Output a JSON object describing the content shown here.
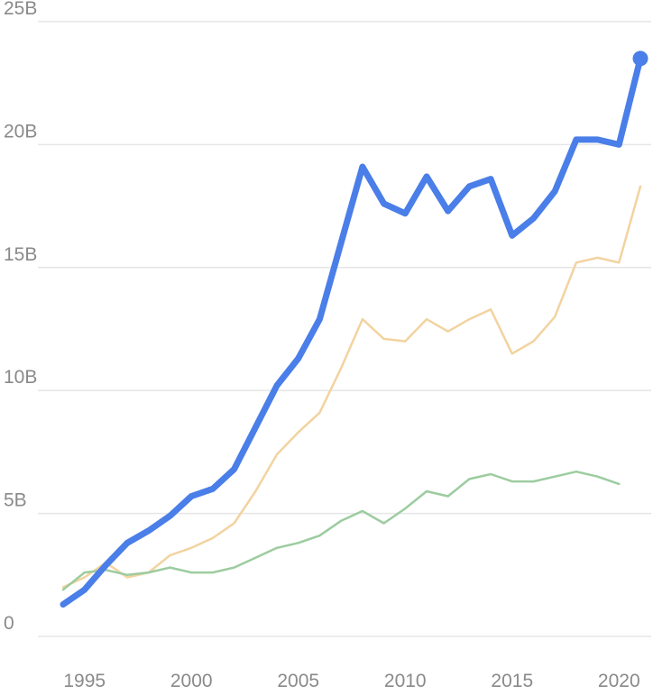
{
  "chart_data": {
    "type": "line",
    "title": "",
    "xlabel": "",
    "ylabel": "",
    "xlim": [
      1994,
      2021
    ],
    "ylim": [
      0,
      25
    ],
    "grid": true,
    "legend": "none",
    "x_ticks": [
      1995,
      2000,
      2005,
      2010,
      2015,
      2020
    ],
    "x_tick_labels": [
      "1995",
      "2000",
      "2005",
      "2010",
      "2015",
      "2020"
    ],
    "y_ticks": [
      0,
      5,
      10,
      15,
      20,
      25
    ],
    "y_tick_labels": [
      "0",
      "5B",
      "10B",
      "15B",
      "20B",
      "25B"
    ],
    "x": [
      1994,
      1995,
      1996,
      1997,
      1998,
      1999,
      2000,
      2001,
      2002,
      2003,
      2004,
      2005,
      2006,
      2007,
      2008,
      2009,
      2010,
      2011,
      2012,
      2013,
      2014,
      2015,
      2016,
      2017,
      2018,
      2019,
      2020,
      2021
    ],
    "series": [
      {
        "color": "#4a7ee8",
        "emphasis": true,
        "end_marker": true,
        "values": [
          1.3,
          1.9,
          2.9,
          3.8,
          4.3,
          4.9,
          5.7,
          6.0,
          6.8,
          8.5,
          10.2,
          11.3,
          12.9,
          16.0,
          19.1,
          17.6,
          17.2,
          18.7,
          17.3,
          18.3,
          18.6,
          16.3,
          17.0,
          18.1,
          20.2,
          20.2,
          20.0,
          23.5
        ]
      },
      {
        "color": "#f2d3a0",
        "emphasis": false,
        "end_marker": false,
        "values": [
          2.0,
          2.4,
          3.0,
          2.4,
          2.6,
          3.3,
          3.6,
          4.0,
          4.6,
          5.9,
          7.4,
          8.3,
          9.1,
          10.9,
          12.9,
          12.1,
          12.0,
          12.9,
          12.4,
          12.9,
          13.3,
          11.5,
          12.0,
          13.0,
          15.2,
          15.4,
          15.2,
          18.3
        ]
      },
      {
        "color": "#9ccc9f",
        "emphasis": false,
        "end_marker": false,
        "values": [
          1.9,
          2.6,
          2.7,
          2.5,
          2.6,
          2.8,
          2.6,
          2.6,
          2.8,
          3.2,
          3.6,
          3.8,
          4.1,
          4.7,
          5.1,
          4.6,
          5.2,
          5.9,
          5.7,
          6.4,
          6.6,
          6.3,
          6.3,
          6.5,
          6.7,
          6.5,
          6.2,
          null
        ]
      }
    ]
  }
}
